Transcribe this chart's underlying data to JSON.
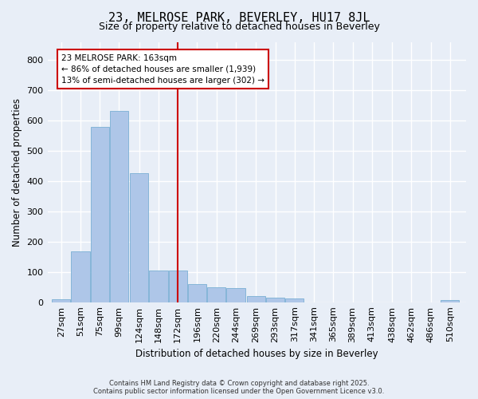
{
  "title": "23, MELROSE PARK, BEVERLEY, HU17 8JL",
  "subtitle": "Size of property relative to detached houses in Beverley",
  "xlabel": "Distribution of detached houses by size in Beverley",
  "ylabel": "Number of detached properties",
  "footer_line1": "Contains HM Land Registry data © Crown copyright and database right 2025.",
  "footer_line2": "Contains public sector information licensed under the Open Government Licence v3.0.",
  "bar_color": "#aec6e8",
  "bar_edge_color": "#7ab0d4",
  "bg_color": "#e8eef7",
  "grid_color": "#ffffff",
  "vline_color": "#cc0000",
  "vline_x": 172,
  "annotation_text": "23 MELROSE PARK: 163sqm\n← 86% of detached houses are smaller (1,939)\n13% of semi-detached houses are larger (302) →",
  "annotation_box_color": "#ffffff",
  "annotation_box_edge": "#cc0000",
  "categories": [
    27,
    51,
    75,
    99,
    124,
    148,
    172,
    196,
    220,
    244,
    269,
    293,
    317,
    341,
    365,
    389,
    413,
    438,
    462,
    486,
    510
  ],
  "values": [
    10,
    168,
    578,
    632,
    427,
    105,
    105,
    60,
    48,
    46,
    20,
    14,
    12,
    0,
    0,
    0,
    0,
    0,
    0,
    0,
    8
  ],
  "ylim": [
    0,
    860
  ],
  "yticks": [
    0,
    100,
    200,
    300,
    400,
    500,
    600,
    700,
    800
  ],
  "bin_width": 24,
  "figsize": [
    6.0,
    5.0
  ],
  "dpi": 100
}
